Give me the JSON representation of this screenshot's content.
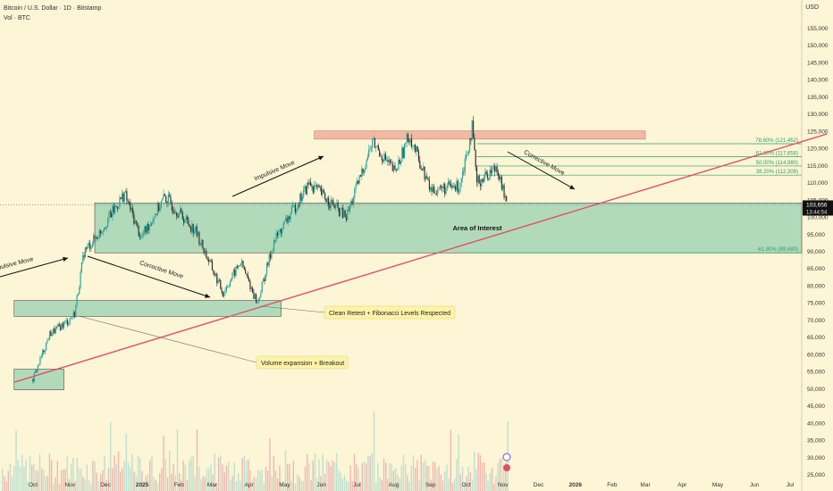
{
  "header": {
    "symbol": "Bitcoin / U.S. Dollar · 1D · Bitstamp",
    "volume_label": "Vol · BTC",
    "currency": "USD"
  },
  "chart_data": {
    "type": "candlestick",
    "y_axis": {
      "ticks": [
        155000,
        150000,
        145000,
        140000,
        135000,
        130000,
        125000,
        120000,
        115000,
        110000,
        105000,
        100000,
        95000,
        90000,
        85000,
        80000,
        75000,
        70000,
        65000,
        60000,
        55000,
        50000,
        45000,
        40000,
        35000,
        30000,
        25000
      ],
      "range": [
        25000,
        157000
      ]
    },
    "x_axis": {
      "ticks": [
        "Oct",
        "Nov",
        "Dec",
        "2025",
        "Feb",
        "Mar",
        "Apr",
        "May",
        "Jun",
        "Jul",
        "Aug",
        "Sep",
        "Oct",
        "Nov",
        "Dec",
        "2026",
        "Feb",
        "Mar",
        "Apr",
        "May",
        "Jun",
        "Jul"
      ]
    },
    "price_path": [
      [
        "2024-10-01",
        53000
      ],
      [
        "2024-10-15",
        66000
      ],
      [
        "2024-10-31",
        70000
      ],
      [
        "2024-11-05",
        72000
      ],
      [
        "2024-11-13",
        90000
      ],
      [
        "2024-11-25",
        95000
      ],
      [
        "2024-12-17",
        107000
      ],
      [
        "2024-12-31",
        94000
      ],
      [
        "2025-01-20",
        106000
      ],
      [
        "2025-02-15",
        96000
      ],
      [
        "2025-03-10",
        78000
      ],
      [
        "2025-03-25",
        87000
      ],
      [
        "2025-04-08",
        75000
      ],
      [
        "2025-04-22",
        93000
      ],
      [
        "2025-05-22",
        110000
      ],
      [
        "2025-06-22",
        100000
      ],
      [
        "2025-07-14",
        122000
      ],
      [
        "2025-08-02",
        113000
      ],
      [
        "2025-08-14",
        124000
      ],
      [
        "2025-09-01",
        108000
      ],
      [
        "2025-09-25",
        109000
      ],
      [
        "2025-10-06",
        126000
      ],
      [
        "2025-10-10",
        110000
      ],
      [
        "2025-10-27",
        115000
      ],
      [
        "2025-11-04",
        103656
      ]
    ],
    "current_price": {
      "label": "103,656",
      "countdown": "13:44:54"
    },
    "fib_levels": [
      {
        "label": "78.60% (121,452)",
        "value": 121452
      },
      {
        "label": "61.80% (117,658)",
        "value": 117658
      },
      {
        "label": "50.00% (114,980)",
        "value": 114980
      },
      {
        "label": "38.20% (112,309)",
        "value": 112309
      },
      {
        "label": "-61.80% (89,680)",
        "value": 89680
      }
    ],
    "zones": [
      {
        "name": "resistance",
        "from": "2025-05-26",
        "to": "2026-03-01",
        "low": 122800,
        "high": 125200,
        "color": "#f0b4a0"
      },
      {
        "name": "area-of-interest",
        "from": "2024-11-22",
        "to": "2026-08-01",
        "low": 89680,
        "high": 104200,
        "color": "#a9d8b8"
      },
      {
        "name": "retest-zone",
        "from": "2024-09-15",
        "to": "2025-04-28",
        "low": 71200,
        "high": 75800,
        "color": "#a9d8b8"
      },
      {
        "name": "base-zone",
        "from": "2024-09-15",
        "to": "2024-10-27",
        "low": 49800,
        "high": 55800,
        "color": "#a9d8b8"
      }
    ],
    "trendline": {
      "from": [
        "2024-09-15",
        52000
      ],
      "to": [
        "2026-08-01",
        124300
      ],
      "color": "#e05066"
    },
    "annotations": {
      "impulsive_1": "Impulsive Move",
      "impulsive_2": "Impulsive Move",
      "corrective_1": "Corrective Move",
      "corrective_2": "Corrective Move",
      "area_of_interest": "Area of Interest",
      "callout_retest": "Clean Retest + Fibonacci Levels Respected",
      "callout_breakout": "Volume expansion + Breakout"
    },
    "colors": {
      "up": "#26a69a",
      "down": "#333333",
      "zone_green": "#a9d8b8",
      "zone_red": "#f0b4a0",
      "trendline": "#e05066",
      "fib": "#2e9e6e",
      "callout_bg": "#fff3a8",
      "background": "#fcf5d6"
    }
  }
}
